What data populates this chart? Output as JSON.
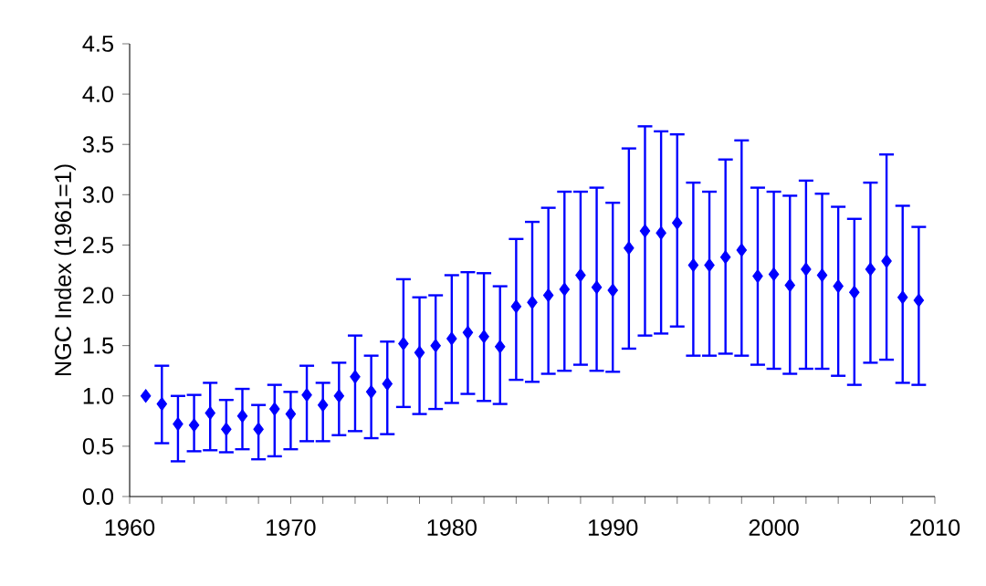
{
  "chart_data": {
    "type": "scatter",
    "ylabel": "NGC Index (1961=1)",
    "x": [
      1961,
      1962,
      1963,
      1964,
      1965,
      1966,
      1967,
      1968,
      1969,
      1970,
      1971,
      1972,
      1973,
      1974,
      1975,
      1976,
      1977,
      1978,
      1979,
      1980,
      1981,
      1982,
      1983,
      1984,
      1985,
      1986,
      1987,
      1988,
      1989,
      1990,
      1991,
      1992,
      1993,
      1994,
      1995,
      1996,
      1997,
      1998,
      1999,
      2000,
      2001,
      2002,
      2003,
      2004,
      2005,
      2006,
      2007,
      2008,
      2009
    ],
    "series": [
      {
        "color": "#0000ff",
        "values": [
          1.0,
          0.92,
          0.72,
          0.71,
          0.83,
          0.67,
          0.8,
          0.67,
          0.87,
          0.82,
          1.01,
          0.91,
          1.0,
          1.19,
          1.04,
          1.12,
          1.52,
          1.43,
          1.5,
          1.57,
          1.63,
          1.59,
          1.49,
          1.89,
          1.93,
          2.0,
          2.06,
          2.2,
          2.08,
          2.05,
          2.47,
          2.64,
          2.62,
          2.72,
          2.3,
          2.3,
          2.38,
          2.45,
          2.19,
          2.21,
          2.1,
          2.26,
          2.2,
          2.09,
          2.03,
          2.26,
          2.34,
          1.98,
          1.95
        ],
        "errors": [
          null,
          [
            0.53,
            1.3
          ],
          [
            0.35,
            1.0
          ],
          [
            0.45,
            1.01
          ],
          [
            0.46,
            1.13
          ],
          [
            0.44,
            0.96
          ],
          [
            0.47,
            1.07
          ],
          [
            0.37,
            0.91
          ],
          [
            0.4,
            1.11
          ],
          [
            0.47,
            1.04
          ],
          [
            0.55,
            1.3
          ],
          [
            0.55,
            1.13
          ],
          [
            0.61,
            1.33
          ],
          [
            0.65,
            1.6
          ],
          [
            0.58,
            1.4
          ],
          [
            0.62,
            1.54
          ],
          [
            0.89,
            2.16
          ],
          [
            0.82,
            1.98
          ],
          [
            0.87,
            2.0
          ],
          [
            0.93,
            2.2
          ],
          [
            1.02,
            2.23
          ],
          [
            0.95,
            2.22
          ],
          [
            0.92,
            2.09
          ],
          [
            1.16,
            2.56
          ],
          [
            1.14,
            2.73
          ],
          [
            1.22,
            2.87
          ],
          [
            1.25,
            3.03
          ],
          [
            1.31,
            3.03
          ],
          [
            1.25,
            3.07
          ],
          [
            1.24,
            2.92
          ],
          [
            1.47,
            3.46
          ],
          [
            1.6,
            3.68
          ],
          [
            1.62,
            3.63
          ],
          [
            1.69,
            3.6
          ],
          [
            1.4,
            3.12
          ],
          [
            1.4,
            3.03
          ],
          [
            1.42,
            3.35
          ],
          [
            1.4,
            3.54
          ],
          [
            1.31,
            3.07
          ],
          [
            1.27,
            3.03
          ],
          [
            1.22,
            2.99
          ],
          [
            1.27,
            3.14
          ],
          [
            1.27,
            3.01
          ],
          [
            1.2,
            2.88
          ],
          [
            1.11,
            2.76
          ],
          [
            1.33,
            3.12
          ],
          [
            1.36,
            3.4
          ],
          [
            1.13,
            2.89
          ],
          [
            1.11,
            2.68
          ]
        ]
      }
    ],
    "xlim": [
      1960,
      2010
    ],
    "xticks": [
      1960,
      {
        "value": 1962,
        "label": null
      },
      {
        "value": 1964,
        "label": null
      },
      {
        "value": 1966,
        "label": null
      },
      {
        "value": 1968,
        "label": null
      },
      1970,
      {
        "value": 1972,
        "label": null
      },
      {
        "value": 1974,
        "label": null
      },
      {
        "value": 1976,
        "label": null
      },
      {
        "value": 1978,
        "label": null
      },
      1980,
      {
        "value": 1982,
        "label": null
      },
      {
        "value": 1984,
        "label": null
      },
      {
        "value": 1986,
        "label": null
      },
      {
        "value": 1988,
        "label": null
      },
      1990,
      {
        "value": 1992,
        "label": null
      },
      {
        "value": 1994,
        "label": null
      },
      {
        "value": 1996,
        "label": null
      },
      {
        "value": 1998,
        "label": null
      },
      2000,
      {
        "value": 2002,
        "label": null
      },
      {
        "value": 2004,
        "label": null
      },
      {
        "value": 2006,
        "label": null
      },
      {
        "value": 2008,
        "label": null
      },
      2010
    ],
    "ylim": [
      0,
      4.5
    ],
    "yticks": [
      {
        "value": 0,
        "label": "0.0"
      },
      {
        "value": 0.5,
        "label": "0.5"
      },
      {
        "value": 1,
        "label": "1.0"
      },
      {
        "value": 1.5,
        "label": "1.5"
      },
      {
        "value": 2,
        "label": "2.0"
      },
      {
        "value": 2.5,
        "label": "2.5"
      },
      {
        "value": 3,
        "label": "3.0"
      },
      {
        "value": 3.5,
        "label": "3.5"
      },
      {
        "value": 4,
        "label": "4.0"
      },
      {
        "value": 4.5,
        "label": "4.5"
      }
    ],
    "marker": "diamond",
    "grid": false
  }
}
